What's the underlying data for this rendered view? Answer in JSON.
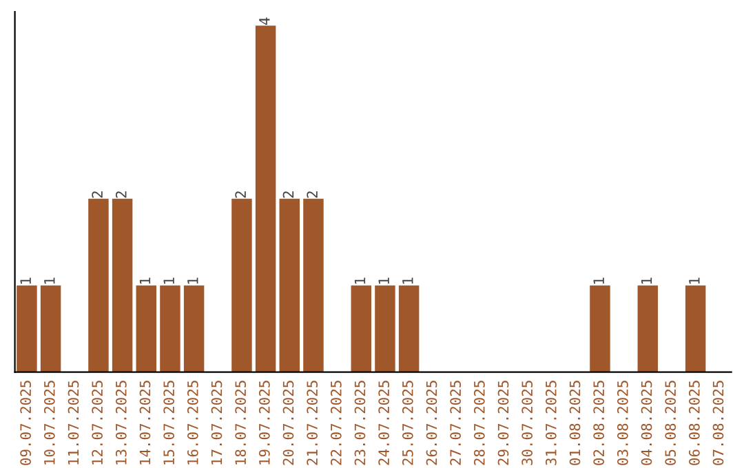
{
  "chart_data": {
    "type": "bar",
    "categories": [
      "09.07.2025",
      "10.07.2025",
      "11.07.2025",
      "12.07.2025",
      "13.07.2025",
      "14.07.2025",
      "15.07.2025",
      "16.07.2025",
      "17.07.2025",
      "18.07.2025",
      "19.07.2025",
      "20.07.2025",
      "21.07.2025",
      "22.07.2025",
      "23.07.2025",
      "24.07.2025",
      "25.07.2025",
      "26.07.2025",
      "27.07.2025",
      "28.07.2025",
      "29.07.2025",
      "30.07.2025",
      "31.07.2025",
      "01.08.2025",
      "02.08.2025",
      "03.08.2025",
      "04.08.2025",
      "05.08.2025",
      "06.08.2025",
      "07.08.2025"
    ],
    "values": [
      1,
      1,
      0,
      2,
      2,
      1,
      1,
      1,
      0,
      2,
      4,
      2,
      2,
      0,
      1,
      1,
      1,
      0,
      0,
      0,
      0,
      0,
      0,
      0,
      1,
      0,
      1,
      0,
      1,
      0
    ],
    "value_labels": [
      "1",
      "1",
      null,
      "2",
      "2",
      "1",
      "1",
      "1",
      null,
      "2",
      "4",
      "2",
      "2",
      null,
      "1",
      "1",
      "1",
      null,
      null,
      null,
      null,
      null,
      null,
      null,
      "1",
      null,
      "1",
      null,
      "1",
      null
    ],
    "color": "#a0572a",
    "relative": false,
    "grid": false,
    "legend": false
  }
}
